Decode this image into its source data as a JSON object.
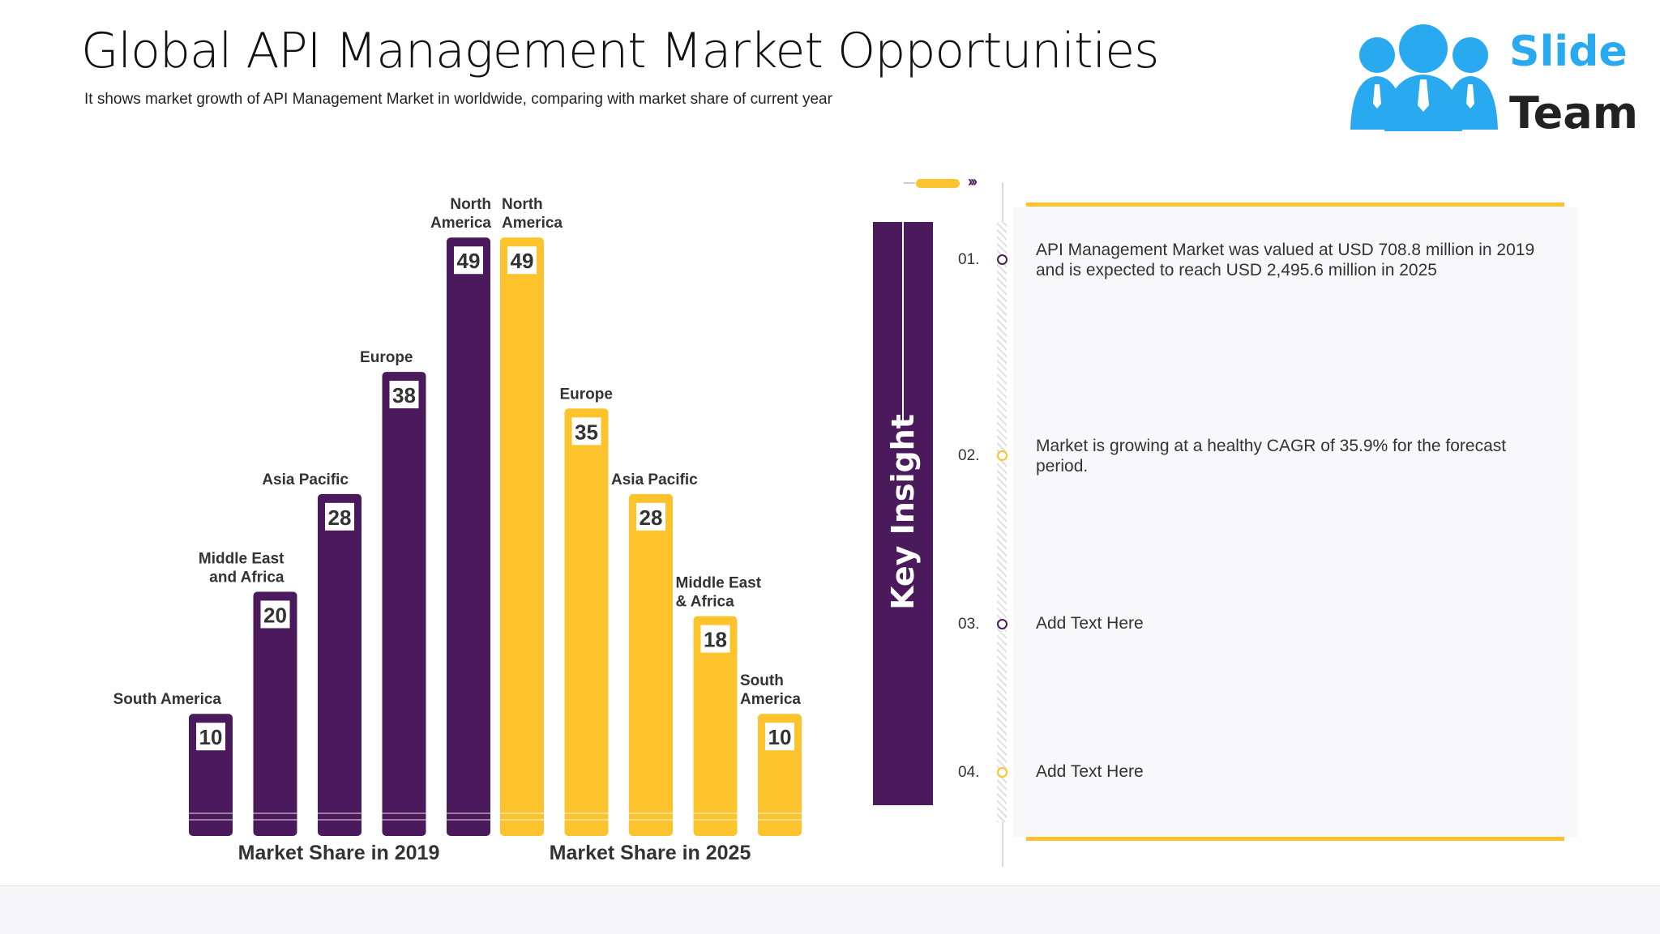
{
  "header": {
    "title": "Global API Management Market Opportunities",
    "subtitle": "It shows market growth of API Management Market in worldwide, comparing with market share of current year"
  },
  "logo": {
    "line1": "Slide",
    "line2": "Team"
  },
  "colors": {
    "purple": "#4a1a5c",
    "yellow": "#fcc32d",
    "logo_blue": "#29a9ef",
    "logo_dark": "#222222",
    "text": "#333333"
  },
  "chart_data": {
    "type": "bar",
    "ylim": [
      0,
      52
    ],
    "groups": [
      {
        "name": "Market Share in 2019",
        "color": "#4a1a5c",
        "categories": [
          "South America",
          "Middle East and Africa",
          "Asia Pacific",
          "Europe",
          "North America"
        ],
        "values": [
          10,
          20,
          28,
          38,
          49
        ],
        "label_lines": [
          [
            "South America"
          ],
          [
            "Middle East",
            "and Africa"
          ],
          [
            "Asia Pacific"
          ],
          [
            "Europe"
          ],
          [
            "North",
            "America"
          ]
        ]
      },
      {
        "name": "Market Share in 2025",
        "color": "#fcc32d",
        "categories": [
          "North America",
          "Europe",
          "Asia Pacific",
          "Middle East & Africa",
          "South America"
        ],
        "values": [
          49,
          35,
          28,
          18,
          10
        ],
        "label_lines": [
          [
            "North",
            "America"
          ],
          [
            "Europe"
          ],
          [
            "Asia Pacific"
          ],
          [
            "Middle East",
            "& Africa"
          ],
          [
            "South",
            "America"
          ]
        ]
      }
    ]
  },
  "key_insight": {
    "title": "Key Insight",
    "items": [
      {
        "num": "01.",
        "text": "API Management Market was valued at USD 708.8 million in 2019 and is expected to reach USD 2,495.6 million in 2025",
        "color": "#4a1a5c"
      },
      {
        "num": "02.",
        "text": "Market is growing at a healthy CAGR of 35.9%  for the forecast period.",
        "color": "#fcc32d"
      },
      {
        "num": "03.",
        "text": "Add Text Here",
        "color": "#4a1a5c"
      },
      {
        "num": "04.",
        "text": "Add Text Here",
        "color": "#fcc32d"
      }
    ]
  }
}
